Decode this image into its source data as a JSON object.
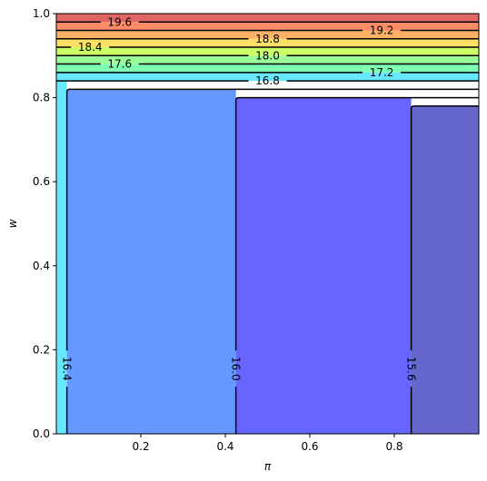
{
  "chart_data": {
    "type": "contour",
    "title": "",
    "xlabel": "π",
    "ylabel": "w",
    "xlim": [
      0.0,
      1.0
    ],
    "ylim": [
      0.0,
      1.0
    ],
    "x_ticks": [
      0.2,
      0.4,
      0.6,
      0.8
    ],
    "x_tick_labels": [
      "0.2",
      "0.4",
      "0.6",
      "0.8"
    ],
    "y_ticks": [
      0.0,
      0.2,
      0.4,
      0.6,
      0.8,
      1.0
    ],
    "y_tick_labels": [
      "0.0",
      "0.2",
      "0.4",
      "0.6",
      "0.8",
      "1.0"
    ],
    "grid": false,
    "colormap": "jet",
    "fill_alpha": 0.6,
    "regions": [
      {
        "x0": 0.0,
        "x1": 0.025,
        "y0": 0.0,
        "y1": 0.84,
        "color": "#66e8ff"
      },
      {
        "x0": 0.025,
        "x1": 0.425,
        "y0": 0.0,
        "y1": 0.82,
        "color": "#6699ff"
      },
      {
        "x0": 0.425,
        "x1": 0.84,
        "y0": 0.0,
        "y1": 0.8,
        "color": "#6666ff"
      },
      {
        "x0": 0.84,
        "x1": 1.0,
        "y0": 0.0,
        "y1": 0.78,
        "color": "#6666cc"
      }
    ],
    "horizontal_bands": [
      {
        "y0": 0.84,
        "y1": 0.86,
        "color": "#66e8ff"
      },
      {
        "y0": 0.86,
        "y1": 0.88,
        "color": "#7fffb2"
      },
      {
        "y0": 0.88,
        "y1": 0.9,
        "color": "#9cff99"
      },
      {
        "y0": 0.9,
        "y1": 0.92,
        "color": "#ccff66"
      },
      {
        "y0": 0.92,
        "y1": 0.94,
        "color": "#ffe066"
      },
      {
        "y0": 0.94,
        "y1": 0.96,
        "color": "#ffb266"
      },
      {
        "y0": 0.96,
        "y1": 0.98,
        "color": "#ff8c66"
      },
      {
        "y0": 0.98,
        "y1": 1.0,
        "color": "#e06666"
      }
    ],
    "contour_lines_horizontal": [
      {
        "level": "16.8",
        "y": 0.84,
        "label_x": 0.5
      },
      {
        "level": "17.2",
        "y": 0.86,
        "label_x": 0.77
      },
      {
        "level": "17.6",
        "y": 0.88,
        "label_x": 0.15
      },
      {
        "level": "18.0",
        "y": 0.9,
        "label_x": 0.5
      },
      {
        "level": "18.4",
        "y": 0.92,
        "label_x": 0.08
      },
      {
        "level": "18.8",
        "y": 0.94,
        "label_x": 0.5
      },
      {
        "level": "19.2",
        "y": 0.96,
        "label_x": 0.77
      },
      {
        "level": "19.6",
        "y": 0.98,
        "label_x": 0.15
      }
    ],
    "contour_lines_step": [
      {
        "level": "16.4",
        "x": 0.025,
        "top_y": 0.82,
        "label_y": 0.155
      },
      {
        "level": "16.0",
        "x": 0.425,
        "top_y": 0.8,
        "label_y": 0.155
      },
      {
        "level": "15.6",
        "x": 0.84,
        "top_y": 0.78,
        "label_y": 0.155
      }
    ]
  }
}
